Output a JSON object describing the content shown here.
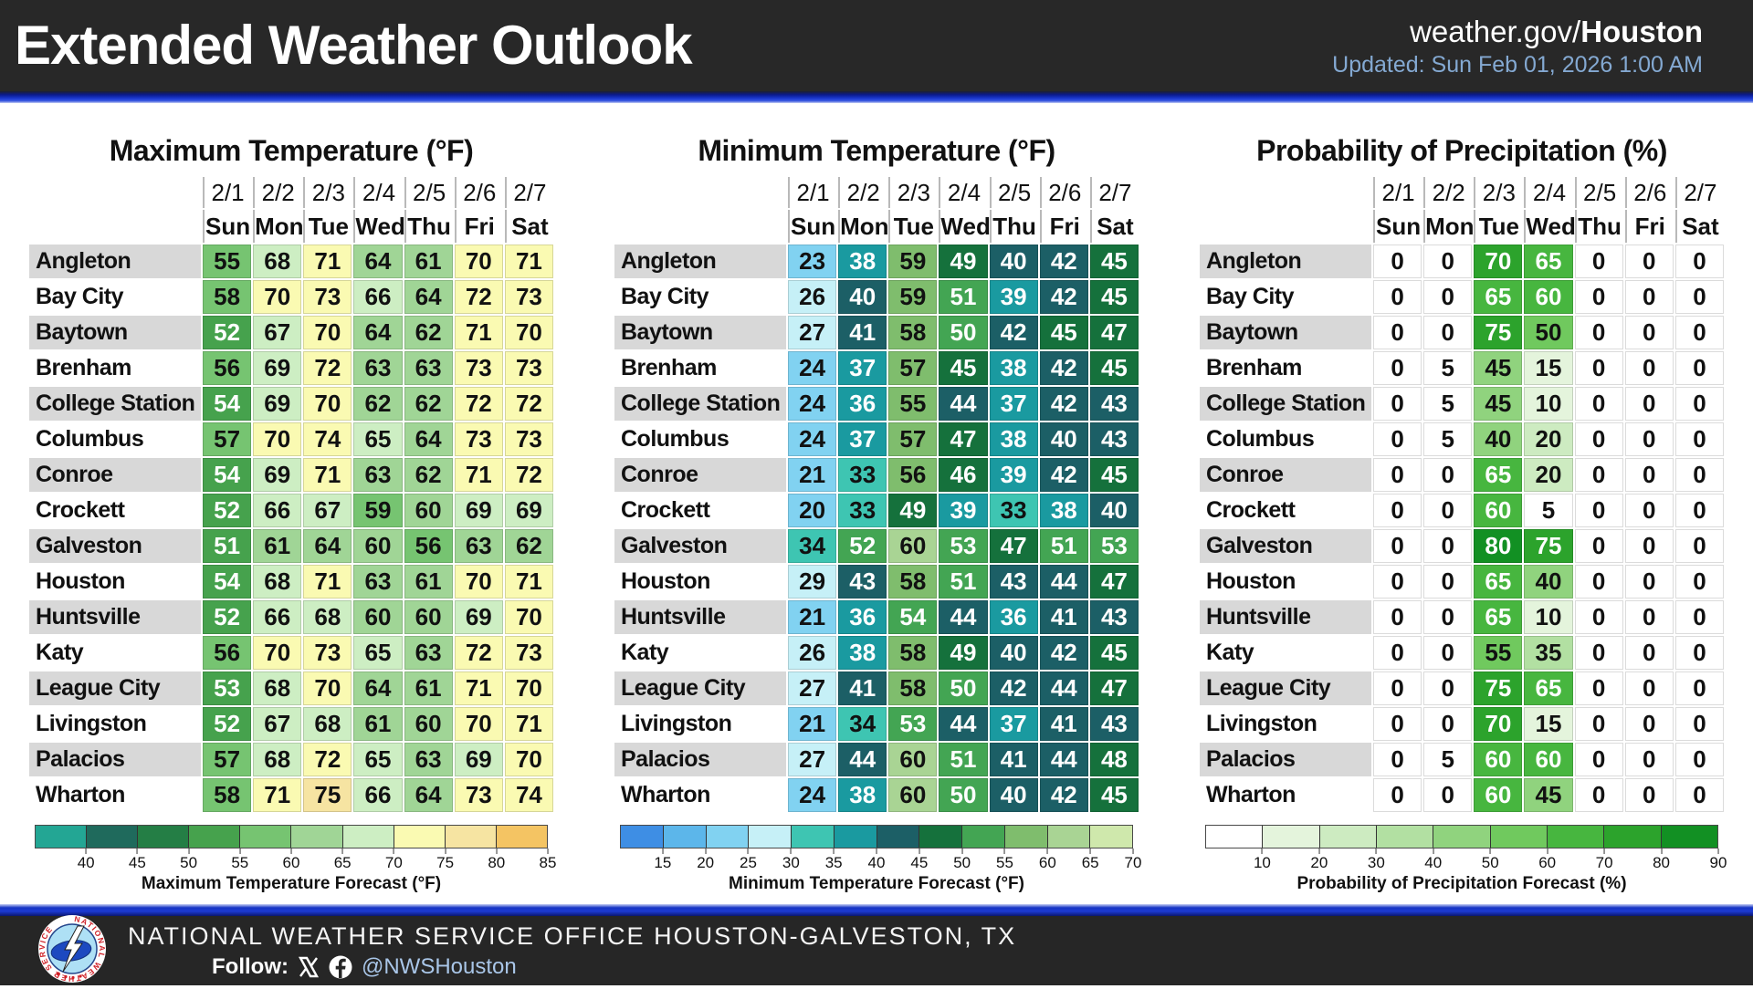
{
  "header": {
    "title": "Extended Weather Outlook",
    "site_prefix": "weather.gov/",
    "site_bold": "Houston",
    "updated": "Updated: Sun Feb 01, 2026 1:00 AM"
  },
  "columns": {
    "dates": [
      "2/1",
      "2/2",
      "2/3",
      "2/4",
      "2/5",
      "2/6",
      "2/7"
    ],
    "days": [
      "Sun",
      "Mon",
      "Tue",
      "Wed",
      "Thu",
      "Fri",
      "Sat"
    ]
  },
  "cities": [
    "Angleton",
    "Bay City",
    "Baytown",
    "Brenham",
    "College Station",
    "Columbus",
    "Conroe",
    "Crockett",
    "Galveston",
    "Houston",
    "Huntsville",
    "Katy",
    "League City",
    "Livingston",
    "Palacios",
    "Wharton"
  ],
  "chart_data": [
    {
      "type": "heatmap",
      "id": "max_temp",
      "title": "Maximum Temperature (°F)",
      "legend_caption": "Maximum Temperature Forecast (°F)",
      "band_min": 35,
      "band_size": 5,
      "scale": {
        "colors": [
          "#23a694",
          "#1f6a5c",
          "#247e45",
          "#46a24d",
          "#76c471",
          "#a0d596",
          "#cdeec3",
          "#fafab2",
          "#f6e4a2",
          "#f4c463"
        ],
        "ticks": [
          "40",
          "45",
          "50",
          "55",
          "60",
          "65",
          "70",
          "75",
          "80",
          "85"
        ]
      },
      "rows": [
        [
          55,
          68,
          71,
          64,
          61,
          70,
          71
        ],
        [
          58,
          70,
          73,
          66,
          64,
          72,
          73
        ],
        [
          52,
          67,
          70,
          64,
          62,
          71,
          70
        ],
        [
          56,
          69,
          72,
          63,
          63,
          73,
          73
        ],
        [
          54,
          69,
          70,
          62,
          62,
          72,
          72
        ],
        [
          57,
          70,
          74,
          65,
          64,
          73,
          73
        ],
        [
          54,
          69,
          71,
          63,
          62,
          71,
          72
        ],
        [
          52,
          66,
          67,
          59,
          60,
          69,
          69
        ],
        [
          51,
          61,
          64,
          60,
          56,
          63,
          62
        ],
        [
          54,
          68,
          71,
          63,
          61,
          70,
          71
        ],
        [
          52,
          66,
          68,
          60,
          60,
          69,
          70
        ],
        [
          56,
          70,
          73,
          65,
          63,
          72,
          73
        ],
        [
          53,
          68,
          70,
          64,
          61,
          71,
          70
        ],
        [
          52,
          67,
          68,
          61,
          60,
          70,
          71
        ],
        [
          57,
          68,
          72,
          65,
          63,
          69,
          70
        ],
        [
          58,
          71,
          75,
          66,
          64,
          73,
          74
        ]
      ]
    },
    {
      "type": "heatmap",
      "id": "min_temp",
      "title": "Minimum Temperature (°F)",
      "legend_caption": "Minimum Temperature Forecast (°F)",
      "band_min": 10,
      "band_size": 5,
      "scale": {
        "colors": [
          "#3e8ee4",
          "#5cb6ea",
          "#81d2f1",
          "#c6f0f7",
          "#3ec5b2",
          "#1a9aa0",
          "#1c5f66",
          "#15713c",
          "#43a553",
          "#7fbd6d",
          "#a9d494",
          "#cfe8ac"
        ],
        "ticks": [
          "15",
          "20",
          "25",
          "30",
          "35",
          "40",
          "45",
          "50",
          "55",
          "60",
          "65",
          "70"
        ]
      },
      "rows": [
        [
          23,
          38,
          59,
          49,
          40,
          42,
          45
        ],
        [
          26,
          40,
          59,
          51,
          39,
          42,
          45
        ],
        [
          27,
          41,
          58,
          50,
          42,
          45,
          47
        ],
        [
          24,
          37,
          57,
          45,
          38,
          42,
          45
        ],
        [
          24,
          36,
          55,
          44,
          37,
          42,
          43
        ],
        [
          24,
          37,
          57,
          47,
          38,
          40,
          43
        ],
        [
          21,
          33,
          56,
          46,
          39,
          42,
          45
        ],
        [
          20,
          33,
          49,
          39,
          33,
          38,
          40
        ],
        [
          34,
          52,
          60,
          53,
          47,
          51,
          53
        ],
        [
          29,
          43,
          58,
          51,
          43,
          44,
          47
        ],
        [
          21,
          36,
          54,
          44,
          36,
          41,
          43
        ],
        [
          26,
          38,
          58,
          49,
          40,
          42,
          45
        ],
        [
          27,
          41,
          58,
          50,
          42,
          44,
          47
        ],
        [
          21,
          34,
          53,
          44,
          37,
          41,
          43
        ],
        [
          27,
          44,
          60,
          51,
          41,
          44,
          48
        ],
        [
          24,
          38,
          60,
          50,
          40,
          42,
          45
        ]
      ]
    },
    {
      "type": "heatmap",
      "id": "pop",
      "title": "Probability of Precipitation (%)",
      "legend_caption": "Probability of Precipitation Forecast (%)",
      "band_min": 0,
      "band_size": 10,
      "scale": {
        "colors": [
          "#ffffff",
          "#e4f4dc",
          "#cdebc1",
          "#b2e0a2",
          "#90d37e",
          "#70c95e",
          "#47b63f",
          "#2ca32c",
          "#129023"
        ],
        "ticks": [
          "10",
          "20",
          "30",
          "40",
          "50",
          "60",
          "70",
          "80",
          "90"
        ]
      },
      "rows": [
        [
          0,
          0,
          70,
          65,
          0,
          0,
          0
        ],
        [
          0,
          0,
          65,
          60,
          0,
          0,
          0
        ],
        [
          0,
          0,
          75,
          50,
          0,
          0,
          0
        ],
        [
          0,
          5,
          45,
          15,
          0,
          0,
          0
        ],
        [
          0,
          5,
          45,
          10,
          0,
          0,
          0
        ],
        [
          0,
          5,
          40,
          20,
          0,
          0,
          0
        ],
        [
          0,
          0,
          65,
          20,
          0,
          0,
          0
        ],
        [
          0,
          0,
          60,
          5,
          0,
          0,
          0
        ],
        [
          0,
          0,
          80,
          75,
          0,
          0,
          0
        ],
        [
          0,
          0,
          65,
          40,
          0,
          0,
          0
        ],
        [
          0,
          0,
          65,
          10,
          0,
          0,
          0
        ],
        [
          0,
          0,
          55,
          35,
          0,
          0,
          0
        ],
        [
          0,
          0,
          75,
          65,
          0,
          0,
          0
        ],
        [
          0,
          0,
          70,
          15,
          0,
          0,
          0
        ],
        [
          0,
          5,
          60,
          60,
          0,
          0,
          0
        ],
        [
          0,
          0,
          60,
          45,
          0,
          0,
          0
        ]
      ]
    }
  ],
  "footer": {
    "office": "NATIONAL WEATHER SERVICE OFFICE HOUSTON-GALVESTON, TX",
    "follow_label": "Follow:",
    "handle": "@NWSHouston",
    "icons": {
      "logo": "nws-logo",
      "x": "x-icon",
      "facebook": "facebook-icon"
    }
  }
}
